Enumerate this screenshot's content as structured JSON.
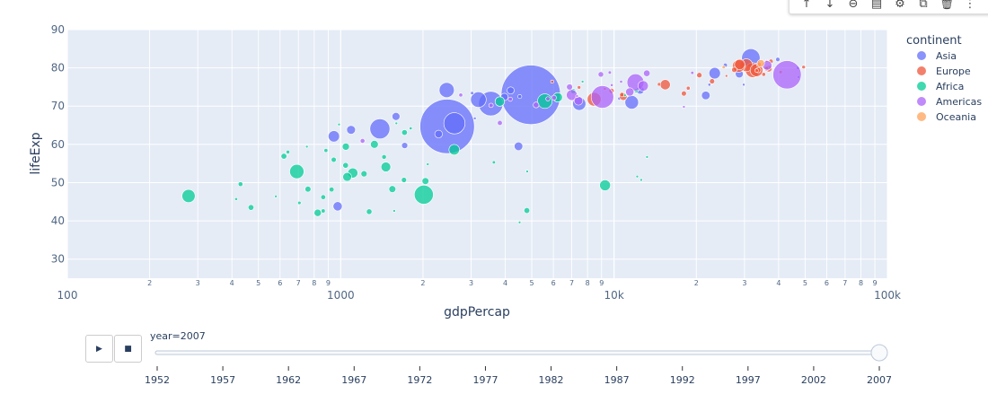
{
  "toolbar": {
    "items": [
      {
        "name": "arrow-up-icon",
        "glyph": "↑"
      },
      {
        "name": "arrow-down-icon",
        "glyph": "↓"
      },
      {
        "name": "link-icon",
        "glyph": "⊖"
      },
      {
        "name": "comment-icon",
        "glyph": "▤"
      },
      {
        "name": "gear-icon",
        "glyph": "⚙"
      },
      {
        "name": "export-icon",
        "glyph": "⧉"
      },
      {
        "name": "trash-icon",
        "glyph": "🗑"
      },
      {
        "name": "more-icon",
        "glyph": "⋮"
      }
    ]
  },
  "controls": {
    "play_glyph": "▶",
    "stop_glyph": "■",
    "slider_label": "year=2007"
  },
  "chart_data": {
    "type": "scatter",
    "xlabel": "gdpPercap",
    "ylabel": "lifeExp",
    "xscale": "log",
    "xlim": [
      100,
      100000
    ],
    "ylim": [
      25,
      90
    ],
    "xticks": [
      {
        "v": 100,
        "l": "100"
      },
      {
        "v": 1000,
        "l": "1000"
      },
      {
        "v": 10000,
        "l": "10k"
      },
      {
        "v": 100000,
        "l": "100k"
      }
    ],
    "xminor_labels": [
      "2",
      "3",
      "4",
      "5",
      "6",
      "7",
      "8",
      "9"
    ],
    "yticks": [
      {
        "v": 30,
        "l": "30"
      },
      {
        "v": 40,
        "l": "40"
      },
      {
        "v": 50,
        "l": "50"
      },
      {
        "v": 60,
        "l": "60"
      },
      {
        "v": 70,
        "l": "70"
      },
      {
        "v": 80,
        "l": "80"
      },
      {
        "v": 90,
        "l": "90"
      }
    ],
    "legend": {
      "title": "continent",
      "placement": "right"
    },
    "size_field": "pop (millions)",
    "series": [
      {
        "name": "Asia",
        "color": "#636efa",
        "points": [
          [
            4959,
            72.96,
            1318
          ],
          [
            2452,
            64.7,
            1110
          ],
          [
            3541,
            70.65,
            224
          ],
          [
            2606,
            65.5,
            169
          ],
          [
            1391,
            64.06,
            150
          ],
          [
            31656,
            82.6,
            127
          ],
          [
            3190,
            71.7,
            91
          ],
          [
            2442,
            74.2,
            85
          ],
          [
            11606,
            71,
            69
          ],
          [
            7458,
            70.6,
            65
          ],
          [
            23348,
            78.6,
            49
          ],
          [
            944,
            62.1,
            47.8
          ],
          [
            974.6,
            43.8,
            31.9
          ],
          [
            1091,
            63.8,
            28.9
          ],
          [
            12452,
            74.2,
            24.8
          ],
          [
            4471,
            59.5,
            27.5
          ],
          [
            21655,
            72.8,
            27.6
          ],
          [
            1593,
            67.3,
            23.3
          ],
          [
            28718,
            78.4,
            23.2
          ],
          [
            2281,
            62.7,
            22.2
          ],
          [
            3970,
            72.4,
            20.4
          ],
          [
            4185,
            74.1,
            19.3
          ],
          [
            1714,
            59.7,
            14.1
          ],
          [
            25523,
            80.7,
            6.4
          ],
          [
            39725,
            82.2,
            6.98
          ],
          [
            4519,
            72.5,
            6
          ],
          [
            10461,
            72,
            3.9
          ],
          [
            3096,
            66.8,
            2.9
          ],
          [
            22316,
            75.6,
            3.2
          ],
          [
            47307,
            77.6,
            2.5
          ],
          [
            3025,
            73.4,
            4
          ],
          [
            47143,
            80,
            4.55
          ],
          [
            29796,
            75.6,
            0.7
          ]
        ]
      },
      {
        "name": "Europe",
        "color": "#EF553B",
        "points": [
          [
            32170,
            79.4,
            82
          ],
          [
            8458,
            71.8,
            71
          ],
          [
            30470,
            80.7,
            61
          ],
          [
            33203,
            79.4,
            60.8
          ],
          [
            28570,
            80.5,
            58
          ],
          [
            28821,
            80.9,
            40
          ],
          [
            15390,
            75.6,
            38.5
          ],
          [
            10808,
            72.5,
            22.3
          ],
          [
            36798,
            79.8,
            16.6
          ],
          [
            27538,
            79.5,
            10.7
          ],
          [
            33693,
            79.4,
            10.4
          ],
          [
            20510,
            78.1,
            10.6
          ],
          [
            22833,
            76.5,
            10.2
          ],
          [
            18009,
            73.3,
            9.96
          ],
          [
            33860,
            80.9,
            9
          ],
          [
            36126,
            79.8,
            8.2
          ],
          [
            10681,
            73,
            7.3
          ],
          [
            9787,
            74,
            10.1
          ],
          [
            37506,
            81.7,
            7.55
          ],
          [
            35278,
            78.3,
            5.5
          ],
          [
            33207,
            79.3,
            5.2
          ],
          [
            18678,
            74.7,
            5.4
          ],
          [
            49357,
            80.2,
            4.6
          ],
          [
            14619,
            75.7,
            4.5
          ],
          [
            40676,
            78.9,
            4.1
          ],
          [
            7446,
            74.9,
            4.55
          ],
          [
            5937,
            76.4,
            3.6
          ],
          [
            25768,
            77.9,
            2
          ],
          [
            9254,
            74.5,
            0.68
          ],
          [
            36181,
            81.8,
            0.3
          ]
        ]
      },
      {
        "name": "Africa",
        "color": "#00cc96",
        "points": [
          [
            2014,
            46.86,
            135
          ],
          [
            5581,
            71.3,
            80
          ],
          [
            690.8,
            52.9,
            76.5
          ],
          [
            277.6,
            46.5,
            64.6
          ],
          [
            9270,
            49.3,
            43.9
          ],
          [
            1107,
            52.5,
            38
          ],
          [
            2602,
            58.6,
            42
          ],
          [
            1463,
            54.1,
            35.6
          ],
          [
            3820,
            71.2,
            33.8
          ],
          [
            6223,
            72.3,
            33.3
          ],
          [
            1056,
            51.5,
            29
          ],
          [
            1328,
            60,
            22.9
          ],
          [
            824,
            42.1,
            19.95
          ],
          [
            1044,
            59.4,
            19.2
          ],
          [
            1545,
            48.3,
            18
          ],
          [
            2042,
            50.4,
            17.7
          ],
          [
            4797,
            42.7,
            12.4
          ],
          [
            469.7,
            43.5,
            12.3
          ],
          [
            619.7,
            56.9,
            12.9
          ],
          [
            759,
            48.3,
            13.3
          ],
          [
            1217,
            52.3,
            14.3
          ],
          [
            1042,
            54.5,
            12
          ],
          [
            1712,
            63.1,
            12.3
          ],
          [
            1271,
            42.4,
            11.7
          ],
          [
            1704,
            50.7,
            10.2
          ],
          [
            7093,
            73.9,
            10.3
          ],
          [
            863,
            46.2,
            8.86
          ],
          [
            943,
            56,
            9.9
          ],
          [
            926,
            48.2,
            9.1
          ],
          [
            430,
            49.6,
            8.4
          ],
          [
            1441,
            56.7,
            8.1
          ],
          [
            863,
            42.6,
            6.1
          ],
          [
            12057,
            74,
            6
          ],
          [
            883,
            58.4,
            5.7
          ],
          [
            641,
            58,
            4.9
          ],
          [
            706,
            44.7,
            4.4
          ],
          [
            3633,
            55.3,
            3.8
          ],
          [
            414.5,
            45.7,
            3.2
          ],
          [
            1803,
            64.2,
            3.3
          ],
          [
            1569,
            42.6,
            2
          ],
          [
            4811,
            52.9,
            2
          ],
          [
            12570,
            50.7,
            1.6
          ],
          [
            752,
            59.4,
            1.7
          ],
          [
            579,
            46.4,
            1.5
          ],
          [
            13206,
            56.7,
            1.45
          ],
          [
            10957,
            72.8,
            1.25
          ],
          [
            4513,
            39.6,
            1.1
          ],
          [
            986,
            65.2,
            0.71
          ],
          [
            2082,
            54.8,
            0.5
          ],
          [
            12154,
            51.6,
            0.55
          ],
          [
            7670,
            76.4,
            0.8
          ],
          [
            1598,
            65.5,
            0.2
          ]
        ]
      },
      {
        "name": "Americas",
        "color": "#ab63fa",
        "points": [
          [
            42952,
            78.2,
            301
          ],
          [
            9066,
            72.4,
            190
          ],
          [
            11978,
            76.2,
            108
          ],
          [
            7007,
            72.9,
            44
          ],
          [
            12779,
            75.3,
            40
          ],
          [
            36319,
            80.65,
            33.4
          ],
          [
            7409,
            71.4,
            28.7
          ],
          [
            11416,
            73.7,
            26
          ],
          [
            13172,
            78.6,
            16.3
          ],
          [
            6873,
            75,
            13.8
          ],
          [
            5186,
            70.3,
            12.6
          ],
          [
            8948,
            78.3,
            11.4
          ],
          [
            3822,
            65.6,
            9.1
          ],
          [
            6025,
            72.2,
            9.3
          ],
          [
            1202,
            60.9,
            8.5
          ],
          [
            3548,
            70.2,
            7.5
          ],
          [
            4173,
            71.8,
            6.7
          ],
          [
            5728,
            71.9,
            6.9
          ],
          [
            2749,
            72.9,
            5.7
          ],
          [
            9645,
            78.8,
            4.1
          ],
          [
            19329,
            78.7,
            3.9
          ],
          [
            10611,
            76.4,
            3.4
          ],
          [
            9809,
            75.5,
            3.2
          ],
          [
            7321,
            72.6,
            2.8
          ],
          [
            18008,
            69.8,
            1.06
          ]
        ]
      },
      {
        "name": "Oceania",
        "color": "#FFA15A",
        "points": [
          [
            34435,
            81.2,
            20.4
          ],
          [
            25185,
            80.2,
            4.1
          ]
        ]
      }
    ],
    "slider": {
      "label": "year=2007",
      "current": 2007,
      "steps": [
        "1952",
        "1957",
        "1962",
        "1967",
        "1972",
        "1977",
        "1982",
        "1987",
        "1992",
        "1997",
        "2002",
        "2007"
      ]
    }
  }
}
